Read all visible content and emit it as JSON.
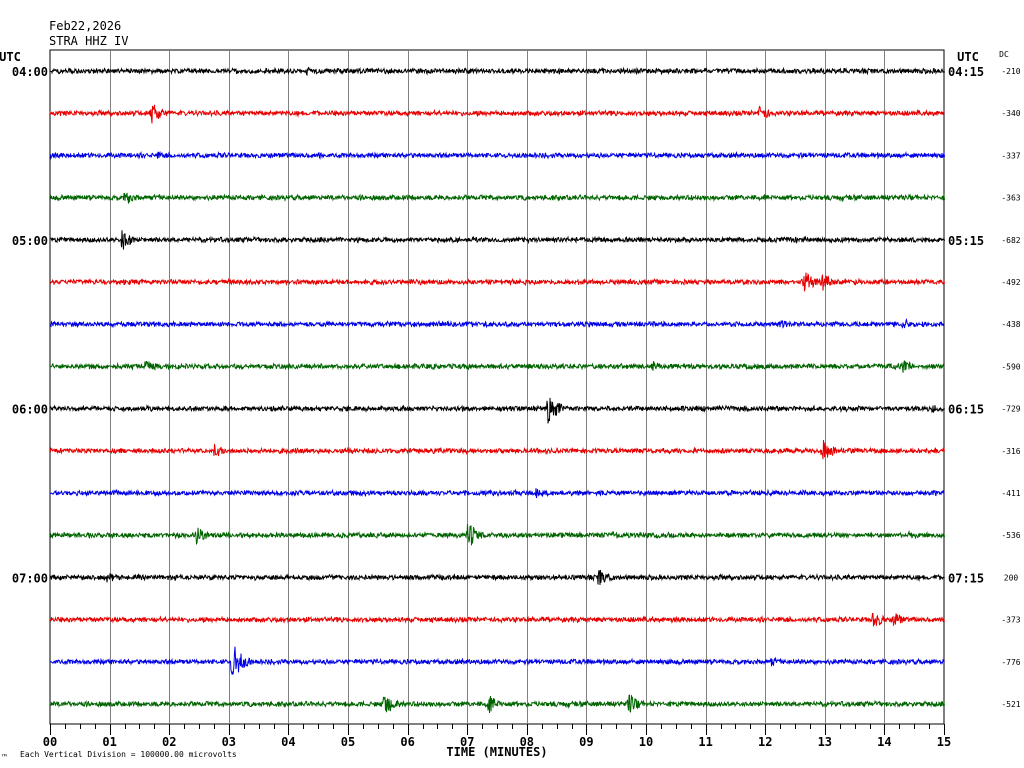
{
  "header": {
    "date": "Feb22,2026",
    "station": "STRA HHZ IV"
  },
  "axes": {
    "left_label": "UTC",
    "right_label": "UTC",
    "dc_label": "DC"
  },
  "footer": {
    "scale_note": "Each Vertical Division = 100000.00 microvolts",
    "corner_mark": "™"
  },
  "colors": {
    "trace_cycle": [
      "#000000",
      "#e60000",
      "#0000e6",
      "#006400"
    ],
    "grid": "#808080"
  },
  "chart_data": {
    "type": "line",
    "title": "",
    "xlabel": "TIME (MINUTES)",
    "ylabel": "",
    "xlim": [
      0,
      15
    ],
    "x_ticks": [
      "00",
      "01",
      "02",
      "03",
      "04",
      "05",
      "06",
      "07",
      "08",
      "09",
      "10",
      "11",
      "12",
      "13",
      "14",
      "15"
    ],
    "minutes_per_row": 15,
    "left_time_labels": [
      "04:00",
      "05:00",
      "06:00",
      "07:00"
    ],
    "right_time_labels": [
      "04:15",
      "05:15",
      "06:15",
      "07:15"
    ],
    "dc_offsets": [
      "-210",
      "-340",
      "-337",
      "-363",
      "-682",
      "-492",
      "-438",
      "-590",
      "-729",
      "-316",
      "-411",
      "-536",
      "200",
      "-373",
      "-776",
      "-521"
    ],
    "series": [
      {
        "row": 0,
        "events": [
          {
            "minute": 4.3,
            "amp": 5
          },
          {
            "minute": 12.8,
            "amp": 4
          }
        ]
      },
      {
        "row": 1,
        "events": [
          {
            "minute": 1.7,
            "amp": 13
          },
          {
            "minute": 11.9,
            "amp": 9
          }
        ]
      },
      {
        "row": 2,
        "events": [
          {
            "minute": 1.8,
            "amp": 4
          },
          {
            "minute": 4.5,
            "amp": 4
          }
        ]
      },
      {
        "row": 3,
        "events": [
          {
            "minute": 1.25,
            "amp": 9
          }
        ]
      },
      {
        "row": 4,
        "events": [
          {
            "minute": 1.2,
            "amp": 12
          }
        ]
      },
      {
        "row": 5,
        "events": [
          {
            "minute": 12.65,
            "amp": 12
          },
          {
            "minute": 12.95,
            "amp": 10
          }
        ]
      },
      {
        "row": 6,
        "events": [
          {
            "minute": 12.25,
            "amp": 6
          },
          {
            "minute": 14.3,
            "amp": 7
          }
        ]
      },
      {
        "row": 7,
        "events": [
          {
            "minute": 1.6,
            "amp": 7
          },
          {
            "minute": 10.1,
            "amp": 6
          },
          {
            "minute": 14.3,
            "amp": 8
          }
        ]
      },
      {
        "row": 8,
        "events": [
          {
            "minute": 3.7,
            "amp": 4
          },
          {
            "minute": 8.35,
            "amp": 17
          },
          {
            "minute": 14.8,
            "amp": 5
          }
        ]
      },
      {
        "row": 9,
        "events": [
          {
            "minute": 2.75,
            "amp": 8
          },
          {
            "minute": 12.95,
            "amp": 13
          }
        ]
      },
      {
        "row": 10,
        "events": [
          {
            "minute": 8.15,
            "amp": 7
          }
        ]
      },
      {
        "row": 11,
        "events": [
          {
            "minute": 2.45,
            "amp": 10
          },
          {
            "minute": 7.0,
            "amp": 15
          },
          {
            "minute": 9.45,
            "amp": 5
          },
          {
            "minute": 14.4,
            "amp": 5
          }
        ]
      },
      {
        "row": 12,
        "events": [
          {
            "minute": 0.95,
            "amp": 8
          },
          {
            "minute": 9.2,
            "amp": 10
          }
        ]
      },
      {
        "row": 13,
        "events": [
          {
            "minute": 13.8,
            "amp": 11
          },
          {
            "minute": 14.15,
            "amp": 9
          }
        ]
      },
      {
        "row": 14,
        "events": [
          {
            "minute": 3.05,
            "amp": 21
          },
          {
            "minute": 12.1,
            "amp": 5
          }
        ]
      },
      {
        "row": 15,
        "events": [
          {
            "minute": 5.6,
            "amp": 14
          },
          {
            "minute": 7.35,
            "amp": 10
          },
          {
            "minute": 9.7,
            "amp": 12
          }
        ]
      }
    ]
  }
}
